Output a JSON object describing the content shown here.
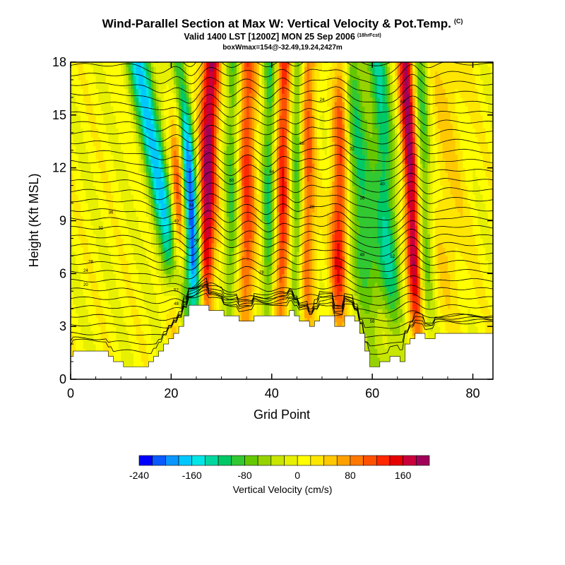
{
  "chart_data": {
    "type": "heatmap",
    "title": "Wind-Parallel Section at Max W: Vertical Velocity & Pot.Temp.",
    "title_mark": "(C)",
    "subtitle": "Valid 1400 LST [1200Z] MON 25 Sep 2006",
    "subtitle_mark": "(18hrFcst)",
    "box_info": "boxWmax=154@-32.49,19.24,2427m",
    "xlabel": "Grid Point",
    "ylabel": "Height (Kft MSL)",
    "xlim": [
      0,
      84
    ],
    "ylim": [
      0,
      18
    ],
    "xticks": [
      0,
      20,
      40,
      60,
      80
    ],
    "yticks": [
      0,
      3,
      6,
      9,
      12,
      15,
      18
    ],
    "terrain_kft": [
      1.3,
      1.6,
      1.6,
      1.6,
      1.6,
      1.6,
      1.6,
      1.6,
      1.3,
      1.0,
      1.0,
      0.7,
      0.7,
      0.7,
      0.7,
      0.7,
      1.0,
      1.3,
      1.6,
      2.0,
      2.3,
      2.6,
      3.0,
      3.6,
      4.2,
      4.2,
      4.2,
      4.2,
      3.9,
      3.9,
      3.9,
      3.6,
      3.6,
      3.6,
      3.3,
      3.3,
      3.3,
      3.6,
      3.6,
      3.6,
      3.6,
      3.6,
      3.6,
      3.6,
      3.9,
      3.6,
      3.3,
      3.3,
      3.0,
      3.3,
      3.6,
      3.6,
      3.6,
      3.0,
      3.0,
      3.6,
      3.6,
      3.3,
      2.6,
      1.6,
      0.7,
      0.7,
      1.0,
      1.0,
      1.3,
      1.3,
      1.0,
      2.0,
      2.3,
      2.6,
      2.6,
      2.3,
      2.3,
      2.6,
      2.6,
      2.6,
      2.6,
      2.6,
      2.6,
      2.6,
      2.6,
      2.6,
      2.6,
      2.6,
      2.6
    ],
    "colorbar": {
      "title": "Vertical Velocity (cm/s)",
      "levels": [
        -240,
        -220,
        -200,
        -180,
        -160,
        -140,
        -120,
        -100,
        -80,
        -60,
        -40,
        -20,
        0,
        20,
        40,
        60,
        80,
        100,
        120,
        140,
        160,
        180,
        200
      ],
      "tick_values": [
        -240,
        -160,
        -80,
        0,
        80,
        160
      ],
      "tick_labels": [
        "-240",
        "-160",
        "-80",
        "0",
        "80",
        "160"
      ],
      "colors": [
        "#0000ff",
        "#0a5aff",
        "#0a96ff",
        "#00c8ff",
        "#00e6e6",
        "#00d7a0",
        "#00c864",
        "#32c832",
        "#64c800",
        "#96d200",
        "#c8e600",
        "#e6f000",
        "#ffff00",
        "#ffe600",
        "#ffc800",
        "#ffa000",
        "#ff7800",
        "#ff5000",
        "#ff2800",
        "#e60000",
        "#c8003c",
        "#a0005a"
      ]
    },
    "updrafts": [
      {
        "x": 24,
        "w": 1.6,
        "amp": -260,
        "tilt": -0.25
      },
      {
        "x": 19,
        "w": 2.5,
        "amp": -170,
        "tilt": -0.6
      },
      {
        "x": 21.5,
        "w": 1.8,
        "amp": 150,
        "tilt": 0.05
      },
      {
        "x": 27,
        "w": 1.8,
        "amp": 180,
        "tilt": 0.1
      },
      {
        "x": 32,
        "w": 1.5,
        "amp": -90,
        "tilt": 0.02
      },
      {
        "x": 35,
        "w": 1.8,
        "amp": 110,
        "tilt": 0.02
      },
      {
        "x": 39.5,
        "w": 1.5,
        "amp": -110,
        "tilt": 0.02
      },
      {
        "x": 42,
        "w": 1.6,
        "amp": 130,
        "tilt": 0.04
      },
      {
        "x": 45,
        "w": 1.4,
        "amp": -100,
        "tilt": 0.02
      },
      {
        "x": 47,
        "w": 1.6,
        "amp": 100,
        "tilt": 0.02
      },
      {
        "x": 53.5,
        "w": 1.7,
        "amp": 140,
        "tilt": 0.05
      },
      {
        "x": 58,
        "w": 3.0,
        "amp": -110,
        "tilt": -0.3
      },
      {
        "x": 63,
        "w": 2.2,
        "amp": -120,
        "tilt": -0.2
      },
      {
        "x": 68,
        "w": 1.5,
        "amp": 180,
        "tilt": -0.15
      },
      {
        "x": 70.5,
        "w": 1.5,
        "amp": -90,
        "tilt": -0.1
      },
      {
        "x": 75,
        "w": 4,
        "amp": 30,
        "tilt": 0
      }
    ],
    "isentrope_labels": [
      "20",
      "24",
      "28",
      "32",
      "36",
      "40",
      "44",
      "48",
      "52",
      "56",
      "60",
      "64",
      "68"
    ]
  }
}
